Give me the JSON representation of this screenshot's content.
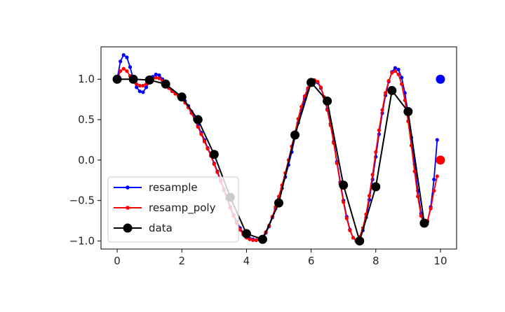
{
  "chart_data": {
    "type": "line",
    "title": "",
    "xlabel": "",
    "ylabel": "",
    "xlim": [
      -0.5,
      10.5
    ],
    "ylim": [
      -1.1,
      1.4
    ],
    "x_ticks": [
      0,
      2,
      4,
      6,
      8,
      10
    ],
    "y_ticks": [
      1.0,
      0.5,
      0.0,
      -0.5,
      -1.0
    ],
    "x_tick_labels": [
      "0",
      "2",
      "4",
      "6",
      "8",
      "10"
    ],
    "y_tick_labels": [
      "1.0",
      "0.5",
      "0.0",
      "−0.5",
      "−1.0"
    ],
    "grid": false,
    "legend_position": "lower-left",
    "series": [
      {
        "name": "resample",
        "color": "#0000ff",
        "marker": "small-dot",
        "x": [
          0,
          0.1,
          0.2,
          0.3,
          0.4,
          0.5,
          0.6,
          0.7,
          0.8,
          0.9,
          1.0,
          1.1,
          1.2,
          1.3,
          1.4,
          1.5,
          1.6,
          1.7,
          1.8,
          1.9,
          2.0,
          2.1,
          2.2,
          2.3,
          2.4,
          2.5,
          2.6,
          2.7,
          2.8,
          2.9,
          3.0,
          3.1,
          3.2,
          3.3,
          3.4,
          3.5,
          3.6,
          3.7,
          3.8,
          3.9,
          4.0,
          4.1,
          4.2,
          4.3,
          4.4,
          4.5,
          4.6,
          4.7,
          4.8,
          4.9,
          5.0,
          5.1,
          5.2,
          5.3,
          5.4,
          5.5,
          5.6,
          5.7,
          5.8,
          5.9,
          6.0,
          6.1,
          6.2,
          6.3,
          6.4,
          6.5,
          6.6,
          6.7,
          6.8,
          6.9,
          7.0,
          7.1,
          7.2,
          7.3,
          7.4,
          7.5,
          7.6,
          7.7,
          7.8,
          7.9,
          8.0,
          8.1,
          8.2,
          8.3,
          8.4,
          8.5,
          8.6,
          8.7,
          8.8,
          8.9,
          9.0,
          9.1,
          9.2,
          9.3,
          9.4,
          9.5,
          9.6,
          9.7,
          9.8,
          9.9
        ],
        "y": [
          1.0,
          1.22,
          1.3,
          1.27,
          1.15,
          1.0,
          0.9,
          0.85,
          0.84,
          0.9,
          0.97,
          1.03,
          1.06,
          1.05,
          1.0,
          0.94,
          0.89,
          0.86,
          0.82,
          0.8,
          0.78,
          0.73,
          0.67,
          0.6,
          0.52,
          0.43,
          0.34,
          0.25,
          0.15,
          0.06,
          -0.04,
          -0.14,
          -0.25,
          -0.36,
          -0.47,
          -0.58,
          -0.68,
          -0.76,
          -0.84,
          -0.9,
          -0.94,
          -0.97,
          -0.98,
          -0.99,
          -0.98,
          -0.96,
          -0.9,
          -0.82,
          -0.71,
          -0.6,
          -0.48,
          -0.35,
          -0.21,
          -0.06,
          0.1,
          0.28,
          0.46,
          0.62,
          0.76,
          0.87,
          0.95,
          0.98,
          0.96,
          0.89,
          0.78,
          0.63,
          0.45,
          0.23,
          -0.02,
          -0.27,
          -0.5,
          -0.7,
          -0.86,
          -0.96,
          -1.0,
          -0.97,
          -0.87,
          -0.71,
          -0.49,
          -0.24,
          0.04,
          0.32,
          0.58,
          0.8,
          0.97,
          1.09,
          1.14,
          1.12,
          1.02,
          0.83,
          0.58,
          0.28,
          -0.05,
          -0.38,
          -0.66,
          -0.8,
          -0.76,
          -0.58,
          -0.24,
          0.25
        ]
      },
      {
        "name": "resamp_poly",
        "color": "#ff0000",
        "marker": "small-dot",
        "x": [
          0,
          0.1,
          0.2,
          0.3,
          0.4,
          0.5,
          0.6,
          0.7,
          0.8,
          0.9,
          1.0,
          1.1,
          1.2,
          1.3,
          1.4,
          1.5,
          1.6,
          1.7,
          1.8,
          1.9,
          2.0,
          2.1,
          2.2,
          2.3,
          2.4,
          2.5,
          2.6,
          2.7,
          2.8,
          2.9,
          3.0,
          3.1,
          3.2,
          3.3,
          3.4,
          3.5,
          3.6,
          3.7,
          3.8,
          3.9,
          4.0,
          4.1,
          4.2,
          4.3,
          4.4,
          4.5,
          4.6,
          4.7,
          4.8,
          4.9,
          5.0,
          5.1,
          5.2,
          5.3,
          5.4,
          5.5,
          5.6,
          5.7,
          5.8,
          5.9,
          6.0,
          6.1,
          6.2,
          6.3,
          6.4,
          6.5,
          6.6,
          6.7,
          6.8,
          6.9,
          7.0,
          7.1,
          7.2,
          7.3,
          7.4,
          7.5,
          7.6,
          7.7,
          7.8,
          7.9,
          8.0,
          8.1,
          8.2,
          8.3,
          8.4,
          8.5,
          8.6,
          8.7,
          8.8,
          8.9,
          9.0,
          9.1,
          9.2,
          9.3,
          9.4,
          9.5,
          9.6,
          9.7,
          9.8,
          9.9
        ],
        "y": [
          1.0,
          1.1,
          1.13,
          1.1,
          1.04,
          0.98,
          0.94,
          0.92,
          0.92,
          0.94,
          0.97,
          1.0,
          1.02,
          1.01,
          0.98,
          0.93,
          0.89,
          0.85,
          0.82,
          0.79,
          0.76,
          0.71,
          0.65,
          0.58,
          0.5,
          0.41,
          0.32,
          0.23,
          0.14,
          0.05,
          -0.05,
          -0.15,
          -0.26,
          -0.37,
          -0.48,
          -0.59,
          -0.69,
          -0.78,
          -0.86,
          -0.92,
          -0.96,
          -0.98,
          -0.99,
          -0.99,
          -0.98,
          -0.95,
          -0.89,
          -0.81,
          -0.7,
          -0.58,
          -0.45,
          -0.31,
          -0.16,
          0.0,
          0.17,
          0.34,
          0.51,
          0.66,
          0.79,
          0.89,
          0.96,
          0.99,
          0.97,
          0.9,
          0.78,
          0.62,
          0.43,
          0.21,
          -0.04,
          -0.29,
          -0.52,
          -0.72,
          -0.87,
          -0.96,
          -0.99,
          -0.95,
          -0.84,
          -0.67,
          -0.44,
          -0.18,
          0.1,
          0.37,
          0.62,
          0.83,
          0.98,
          1.08,
          1.1,
          1.06,
          0.94,
          0.74,
          0.48,
          0.18,
          -0.14,
          -0.45,
          -0.69,
          -0.8,
          -0.75,
          -0.6,
          -0.38,
          -0.2
        ]
      },
      {
        "name": "data",
        "color": "#000000",
        "marker": "large-dot",
        "x": [
          0,
          0.5,
          1.0,
          1.5,
          2.0,
          2.5,
          3.0,
          3.5,
          4.0,
          4.5,
          5.0,
          5.5,
          6.0,
          6.5,
          7.0,
          7.5,
          8.0,
          8.5,
          9.0,
          9.5
        ],
        "y": [
          1.0,
          1.0,
          0.99,
          0.94,
          0.78,
          0.5,
          0.07,
          -0.46,
          -0.91,
          -0.98,
          -0.53,
          0.31,
          0.96,
          0.73,
          -0.31,
          -1.0,
          -0.33,
          0.86,
          0.6,
          -0.78
        ]
      }
    ],
    "extra_points": [
      {
        "series": "resample",
        "x": 10,
        "y": 1.0,
        "color": "#0000ff"
      },
      {
        "series": "resamp_poly",
        "x": 10,
        "y": 0.0,
        "color": "#ff0000"
      }
    ]
  }
}
